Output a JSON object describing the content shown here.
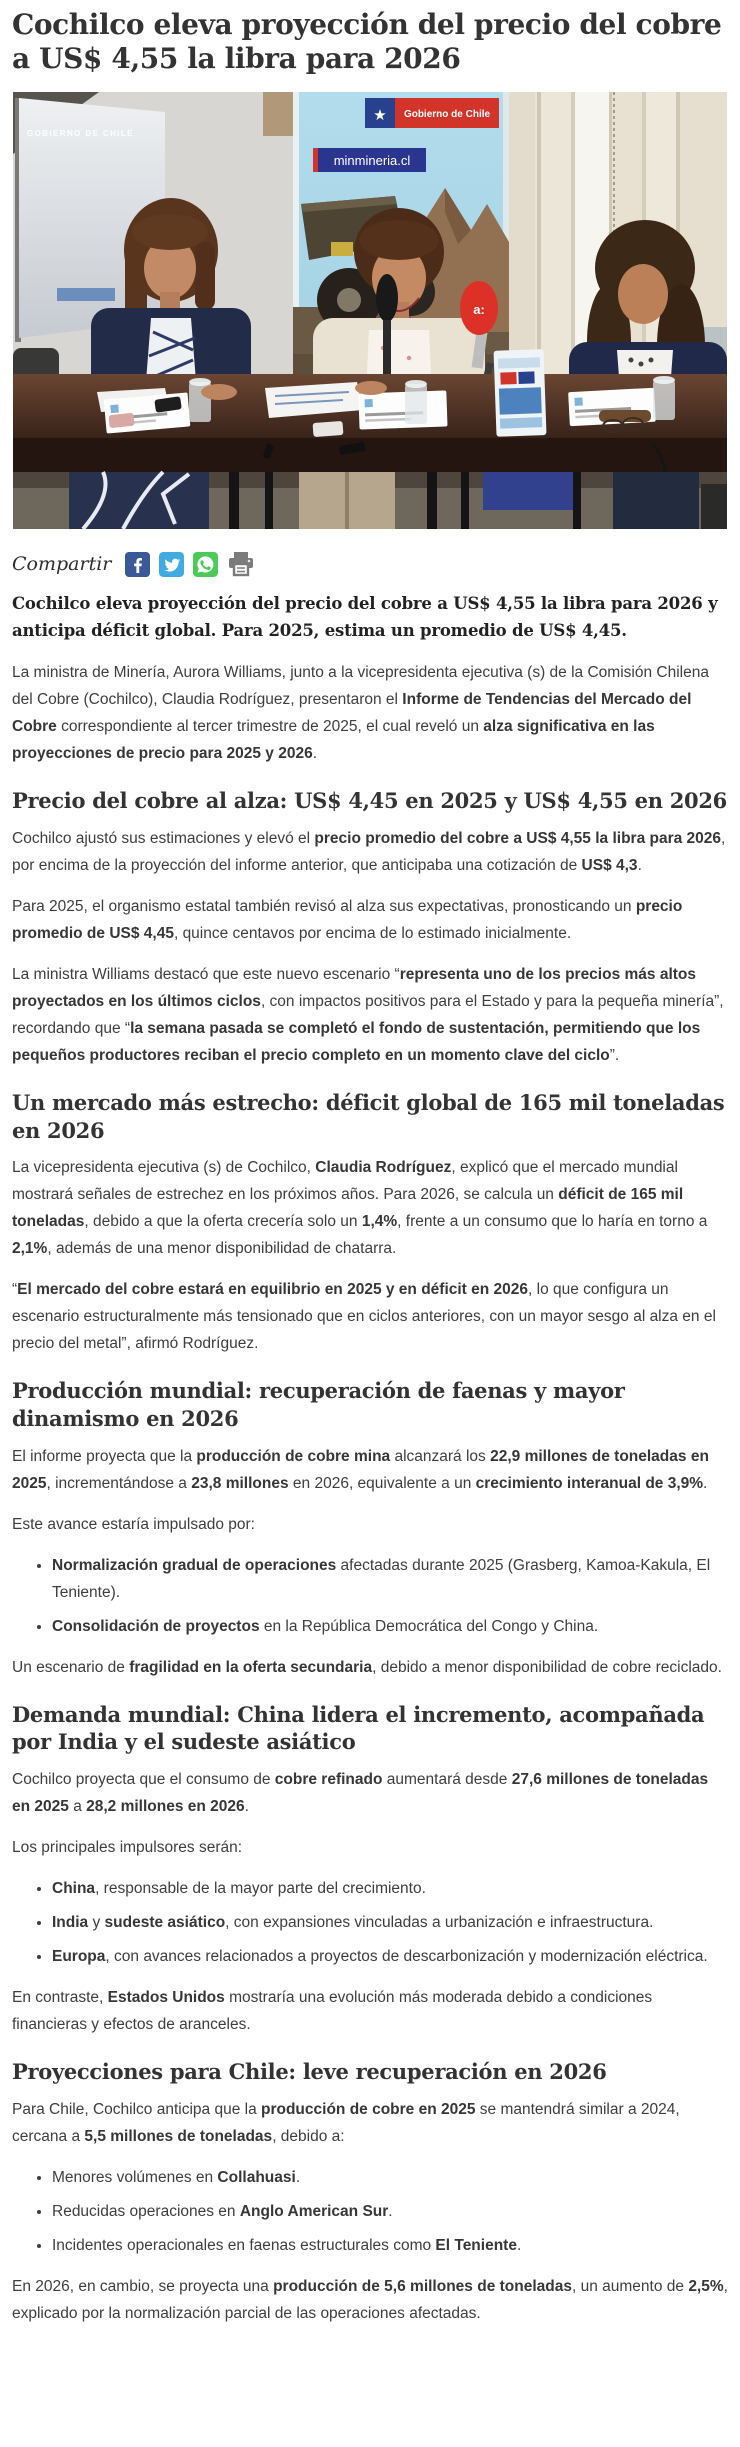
{
  "article": {
    "headline": "Cochilco eleva proyección del precio del cobre a US$ 4,55 la libra para 2026",
    "photo": {
      "screen_text": "GOBIERNO DE CHILE",
      "logo_box_text": "Gobierno de Chile",
      "banner_site_text": "minmineria.cl",
      "mic_brand_text": "a:"
    },
    "share": {
      "label": "Compartir",
      "icons": [
        {
          "name": "facebook",
          "color": "#3b5998"
        },
        {
          "name": "twitter",
          "color": "#41abe1"
        },
        {
          "name": "whatsapp",
          "color": "#4bca5a"
        },
        {
          "name": "print",
          "color": "#7b7b7b"
        }
      ]
    },
    "lede": "Cochilco eleva proyección del precio del cobre a US$ 4,55 la libra para 2026 y anticipa déficit global. Para 2025, estima un promedio de US$ 4,45.",
    "blocks": [
      {
        "type": "p",
        "segments": [
          {
            "t": "La ministra de Minería, Aurora Williams, junto a la vicepresidenta ejecutiva (s) de la Comisión Chilena del Cobre (Cochilco), Claudia Rodríguez, presentaron el "
          },
          {
            "t": "Informe de Tendencias del Mercado del Cobre",
            "b": true
          },
          {
            "t": " correspondiente al tercer trimestre de 2025, el cual reveló un "
          },
          {
            "t": "alza significativa en las proyecciones de precio para 2025 y 2026",
            "b": true
          },
          {
            "t": "."
          }
        ]
      },
      {
        "type": "h2",
        "text": "Precio del cobre al alza: US$ 4,45 en 2025 y US$ 4,55 en 2026"
      },
      {
        "type": "p",
        "segments": [
          {
            "t": "Cochilco ajustó sus estimaciones y elevó el "
          },
          {
            "t": "precio promedio del cobre a US$ 4,55 la libra para 2026",
            "b": true
          },
          {
            "t": ", por encima de la proyección del informe anterior, que anticipaba una cotización de "
          },
          {
            "t": "US$ 4,3",
            "b": true
          },
          {
            "t": "."
          }
        ]
      },
      {
        "type": "p",
        "segments": [
          {
            "t": "Para 2025, el organismo estatal también revisó al alza sus expectativas, pronosticando un "
          },
          {
            "t": "precio promedio de US$ 4,45",
            "b": true
          },
          {
            "t": ", quince centavos por encima de lo estimado inicialmente."
          }
        ]
      },
      {
        "type": "p",
        "segments": [
          {
            "t": "La ministra Williams destacó que este nuevo escenario “"
          },
          {
            "t": "representa uno de los precios más altos proyectados en los últimos ciclos",
            "b": true
          },
          {
            "t": ", con impactos positivos para el Estado y para la pequeña minería”, recordando que “"
          },
          {
            "t": "la semana pasada se completó el fondo de sustentación, permitiendo que los pequeños productores reciban el precio completo en un momento clave del ciclo",
            "b": true
          },
          {
            "t": "”."
          }
        ]
      },
      {
        "type": "h2",
        "text": "Un mercado más estrecho: déficit global de 165 mil toneladas en 2026"
      },
      {
        "type": "p",
        "segments": [
          {
            "t": "La vicepresidenta ejecutiva (s) de Cochilco, "
          },
          {
            "t": "Claudia Rodríguez",
            "b": true
          },
          {
            "t": ", explicó que el mercado mundial mostrará señales de estrechez en los próximos años. Para 2026, se calcula un "
          },
          {
            "t": "déficit de 165 mil toneladas",
            "b": true
          },
          {
            "t": ", debido a que la oferta crecería solo un "
          },
          {
            "t": "1,4%",
            "b": true
          },
          {
            "t": ", frente a un consumo que lo haría en torno a "
          },
          {
            "t": "2,1%",
            "b": true
          },
          {
            "t": ", además de una menor disponibilidad de chatarra."
          }
        ]
      },
      {
        "type": "p",
        "segments": [
          {
            "t": "“"
          },
          {
            "t": "El mercado del cobre estará en equilibrio en 2025 y en déficit en 2026",
            "b": true
          },
          {
            "t": ", lo que configura un escenario estructuralmente más tensionado que en ciclos anteriores, con un mayor sesgo al alza en el precio del metal”, afirmó Rodríguez."
          }
        ]
      },
      {
        "type": "h2",
        "text": "Producción mundial: recuperación de faenas y mayor dinamismo en 2026"
      },
      {
        "type": "p",
        "segments": [
          {
            "t": "El informe proyecta que la "
          },
          {
            "t": "producción de cobre mina",
            "b": true
          },
          {
            "t": " alcanzará los "
          },
          {
            "t": "22,9 millones de toneladas en 2025",
            "b": true
          },
          {
            "t": ", incrementándose a "
          },
          {
            "t": "23,8 millones",
            "b": true
          },
          {
            "t": " en 2026, equivalente a un "
          },
          {
            "t": "crecimiento interanual de 3,9%",
            "b": true
          },
          {
            "t": "."
          }
        ]
      },
      {
        "type": "p",
        "segments": [
          {
            "t": "Este avance estaría impulsado por:"
          }
        ]
      },
      {
        "type": "list",
        "items": [
          [
            {
              "t": "Normalización gradual de operaciones",
              "b": true
            },
            {
              "t": " afectadas durante 2025 (Grasberg, Kamoa-Kakula, El Teniente)."
            }
          ],
          [
            {
              "t": "Consolidación de proyectos",
              "b": true
            },
            {
              "t": " en la República Democrática del Congo y China."
            }
          ]
        ]
      },
      {
        "type": "p",
        "segments": [
          {
            "t": "Un escenario de "
          },
          {
            "t": "fragilidad en la oferta secundaria",
            "b": true
          },
          {
            "t": ", debido a menor disponibilidad de cobre reciclado."
          }
        ]
      },
      {
        "type": "h2",
        "text": "Demanda mundial: China lidera el incremento, acompañada por India y el sudeste asiático"
      },
      {
        "type": "p",
        "segments": [
          {
            "t": "Cochilco proyecta que el consumo de "
          },
          {
            "t": "cobre refinado",
            "b": true
          },
          {
            "t": " aumentará desde "
          },
          {
            "t": "27,6 millones de toneladas en 2025",
            "b": true
          },
          {
            "t": " a "
          },
          {
            "t": "28,2 millones en 2026",
            "b": true
          },
          {
            "t": "."
          }
        ]
      },
      {
        "type": "p",
        "segments": [
          {
            "t": "Los principales impulsores serán:"
          }
        ]
      },
      {
        "type": "list",
        "items": [
          [
            {
              "t": "China",
              "b": true
            },
            {
              "t": ", responsable de la mayor parte del crecimiento."
            }
          ],
          [
            {
              "t": "India",
              "b": true
            },
            {
              "t": " y "
            },
            {
              "t": "sudeste asiático",
              "b": true
            },
            {
              "t": ", con expansiones vinculadas a urbanización e infraestructura."
            }
          ],
          [
            {
              "t": "Europa",
              "b": true
            },
            {
              "t": ", con avances relacionados a proyectos de descarbonización y modernización eléctrica."
            }
          ]
        ]
      },
      {
        "type": "p",
        "segments": [
          {
            "t": "En contraste, "
          },
          {
            "t": "Estados Unidos",
            "b": true
          },
          {
            "t": " mostraría una evolución más moderada debido a condiciones financieras y efectos de aranceles."
          }
        ]
      },
      {
        "type": "h2",
        "text": "Proyecciones para Chile: leve recuperación en 2026"
      },
      {
        "type": "p",
        "segments": [
          {
            "t": "Para Chile, Cochilco anticipa que la "
          },
          {
            "t": "producción de cobre en 2025",
            "b": true
          },
          {
            "t": " se mantendrá similar a 2024, cercana a "
          },
          {
            "t": "5,5 millones de toneladas",
            "b": true
          },
          {
            "t": ", debido a:"
          }
        ]
      },
      {
        "type": "list",
        "items": [
          [
            {
              "t": "Menores volúmenes en "
            },
            {
              "t": "Collahuasi",
              "b": true
            },
            {
              "t": "."
            }
          ],
          [
            {
              "t": "Reducidas operaciones en "
            },
            {
              "t": "Anglo American Sur",
              "b": true
            },
            {
              "t": "."
            }
          ],
          [
            {
              "t": "Incidentes operacionales en faenas estructurales como "
            },
            {
              "t": "El Teniente",
              "b": true
            },
            {
              "t": "."
            }
          ]
        ]
      },
      {
        "type": "p",
        "segments": [
          {
            "t": "En 2026, en cambio, se proyecta una "
          },
          {
            "t": "producción de 5,6 millones de toneladas",
            "b": true
          },
          {
            "t": ", un aumento de "
          },
          {
            "t": "2,5%",
            "b": true
          },
          {
            "t": ", explicado por la normalización parcial de las operaciones afectadas."
          }
        ]
      }
    ]
  }
}
